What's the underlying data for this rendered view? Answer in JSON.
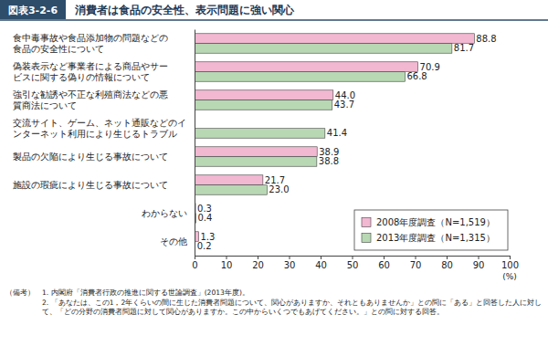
{
  "chart_data": {
    "type": "bar",
    "figure_label": "図表3-2-6",
    "title": "消費者は食品の安全性、表示問題に強い関心",
    "orientation": "horizontal",
    "categories": [
      "食中毒事故や食品添加物の問題などの\n食品の安全性について",
      "偽装表示など事業者による商品やサー\nビスに関する偽りの情報について",
      "強引な勧誘や不正な利殖商法などの悪\n質商法について",
      "交流サイト、ゲーム、ネット通販などのイ\nンターネット利用により生じるトラブル",
      "製品の欠陥により生じる事故について",
      "施設の瑕疵により生じる事故について",
      "わからない",
      "その他"
    ],
    "series": [
      {
        "name": "2008年度調査（N=1,519）",
        "color": "#f2b8d2",
        "values": [
          88.8,
          70.9,
          44.0,
          null,
          38.9,
          21.7,
          0.3,
          1.3
        ],
        "value_labels": [
          "88.8",
          "70.9",
          "44.0",
          null,
          "38.9",
          "21.7",
          "0.3",
          "1.3"
        ]
      },
      {
        "name": "2013年度調査（N=1,315）",
        "color": "#b8d8b4",
        "values": [
          81.7,
          66.8,
          43.7,
          41.4,
          38.8,
          23.0,
          0.4,
          0.2
        ],
        "value_labels": [
          "81.7",
          "66.8",
          "43.7",
          "41.4",
          "38.8",
          "23.0",
          "0.4",
          "0.2"
        ]
      }
    ],
    "xlim": [
      0,
      100
    ],
    "xticks": [
      0,
      10,
      20,
      30,
      40,
      50,
      60,
      70,
      80,
      90,
      100
    ],
    "xlabel": "(%)",
    "grid": false,
    "legend": "lower right",
    "data_labels": true,
    "notes_label": "（備考）",
    "notes": [
      "1. 内閣府「消費者行政の推進に関する世論調査」(2013年度)。",
      "2. 「あなたは、この1，2年くらいの間に生じた消費者問題について、関心がありますか、それともありませんか」との問に「ある」と回答した人に対して、「どの分野の消費者問題に対して関心がありますか。この中からいくつでもあげてください。」との問に対する回答。"
    ]
  }
}
